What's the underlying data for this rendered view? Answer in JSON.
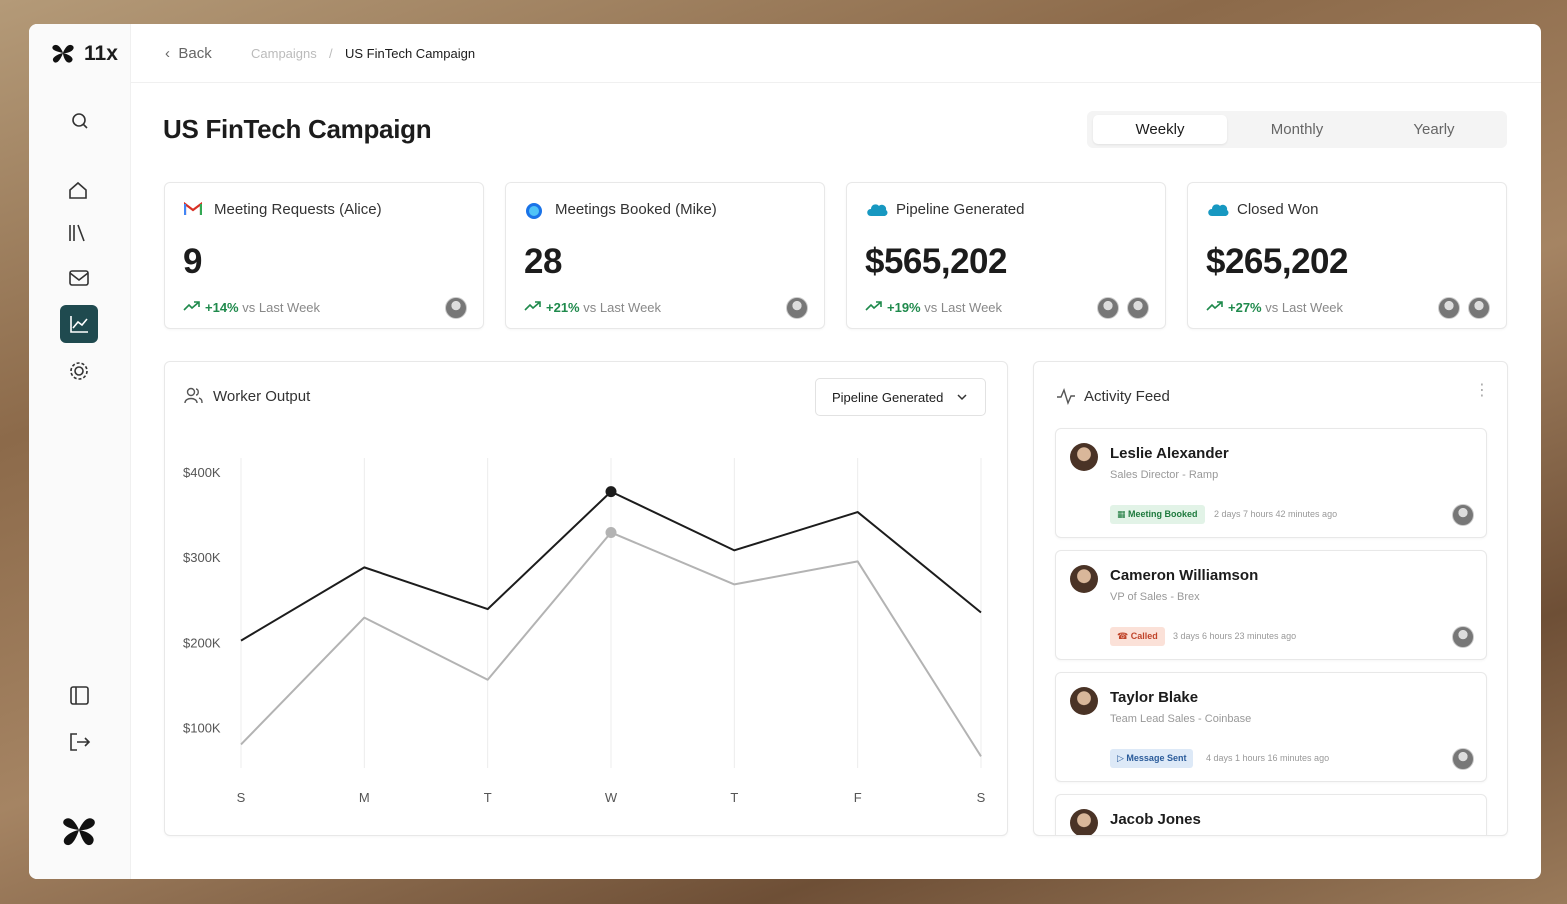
{
  "brand": "11x",
  "breadcrumb": {
    "back": "Back",
    "items": [
      "Campaigns",
      "US FinTech Campaign"
    ]
  },
  "title": "US FinTech Campaign",
  "periods": [
    "Weekly",
    "Monthly",
    "Yearly"
  ],
  "metrics": [
    {
      "label": "Meeting Requests (Alice)",
      "value": "9",
      "change": "+14%",
      "comparison": "vs Last Week"
    },
    {
      "label": "Meetings Booked (Mike)",
      "value": "28",
      "change": "+21%",
      "comparison": "vs Last Week"
    },
    {
      "label": "Pipeline Generated",
      "value": "$565,202",
      "change": "+19%",
      "comparison": "vs Last Week"
    },
    {
      "label": "Closed Won",
      "value": "$265,202",
      "change": "+27%",
      "comparison": "vs Last Week"
    }
  ],
  "worker_output": {
    "title": "Worker Output",
    "dropdown": "Pipeline Generated",
    "chart": {
      "type": "line",
      "categories": [
        "S",
        "M",
        "T",
        "W",
        "T",
        "F",
        "S"
      ],
      "series": [
        {
          "color": "#1c1c1c",
          "values": [
            202000,
            288000,
            239000,
            377000,
            308000,
            353000,
            235000
          ]
        },
        {
          "color": "#b3b3b3",
          "values": [
            80000,
            229000,
            156000,
            329000,
            268000,
            295000,
            66000
          ]
        }
      ],
      "ylim": [
        50000,
        420000
      ],
      "yticks": [
        {
          "value": 100000,
          "label": "$100K"
        },
        {
          "value": 200000,
          "label": "$200K"
        },
        {
          "value": 300000,
          "label": "$300K"
        },
        {
          "value": 400000,
          "label": "$400K"
        }
      ]
    }
  },
  "activity_feed": {
    "title": "Activity Feed",
    "items": [
      {
        "name": "Leslie Alexander",
        "role": "Sales Director - Ramp",
        "status": "Meeting Booked",
        "time": "2 days 7 hours 42 minutes ago"
      },
      {
        "name": "Cameron Williamson",
        "role": "VP of Sales - Brex",
        "status": "Called",
        "time": "3 days 6 hours 23 minutes ago"
      },
      {
        "name": "Taylor Blake",
        "role": "Team Lead Sales - Coinbase",
        "status": "Message Sent",
        "time": "4 days 1 hours 16 minutes ago"
      },
      {
        "name": "Jacob Jones"
      }
    ]
  }
}
